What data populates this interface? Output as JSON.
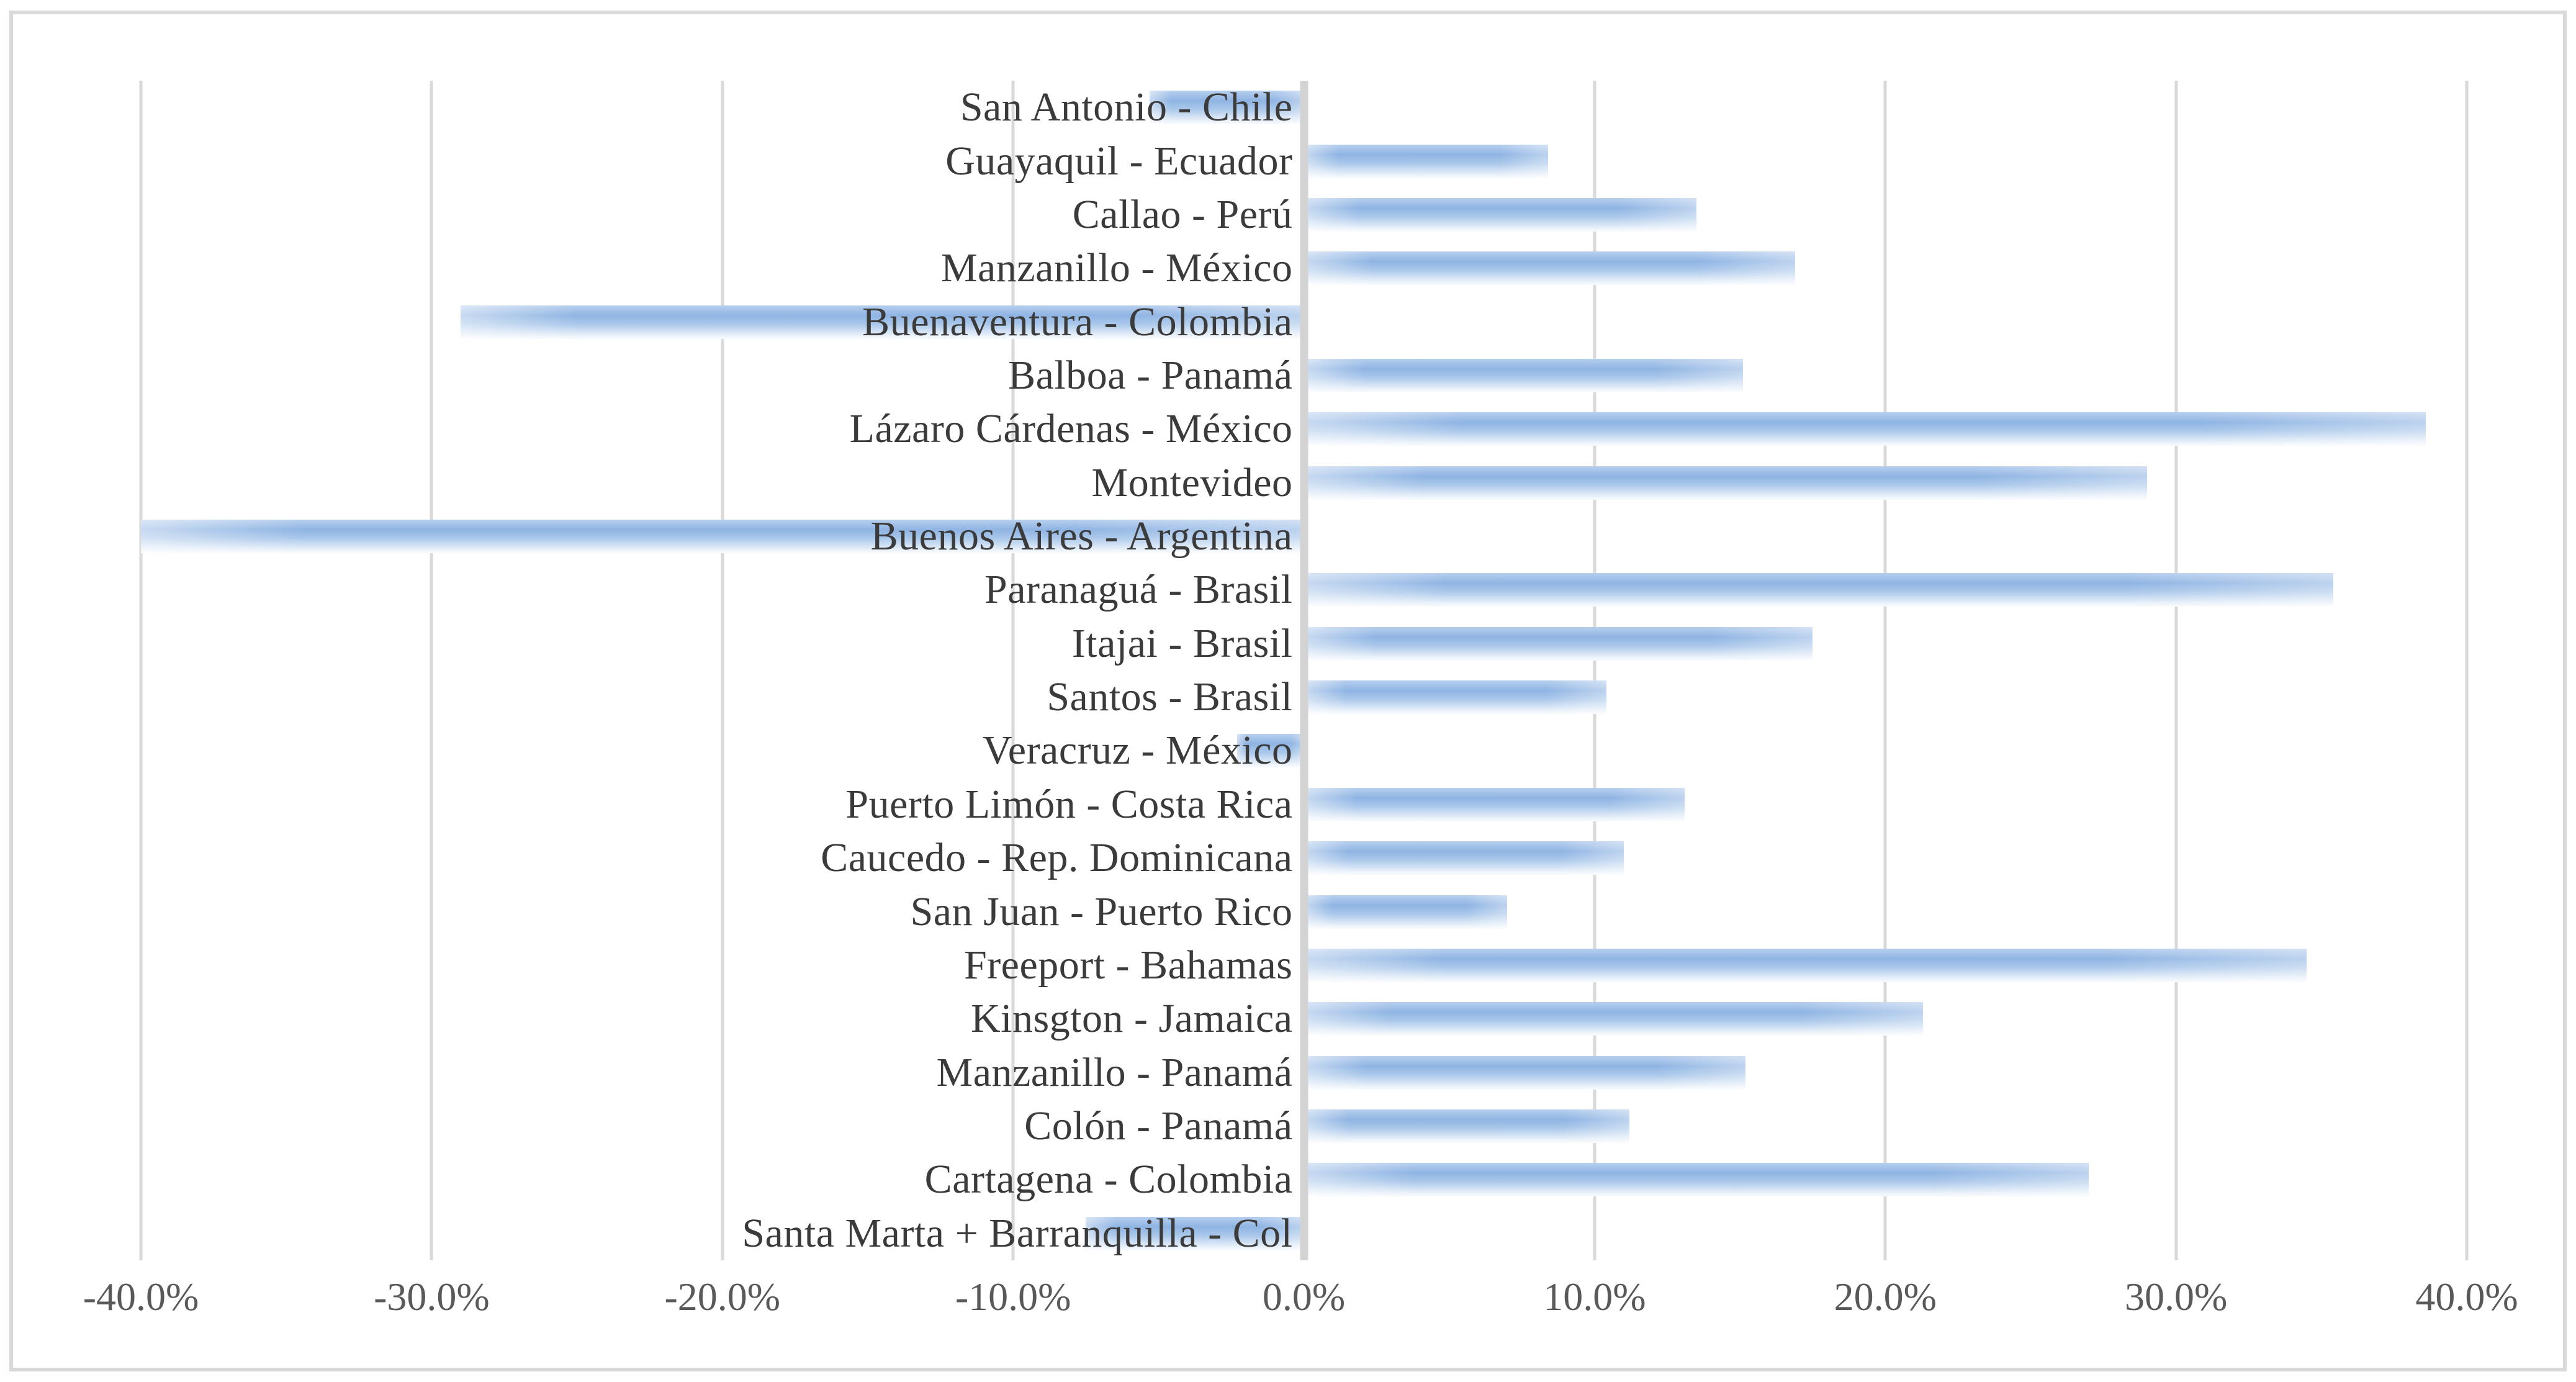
{
  "chart_data": {
    "type": "bar",
    "orientation": "horizontal",
    "title": "",
    "xlabel": "",
    "ylabel": "",
    "unit": "percent",
    "xlim": [
      -40,
      40
    ],
    "x_ticks": [
      -40,
      -30,
      -20,
      -10,
      0,
      10,
      20,
      30,
      40
    ],
    "x_tick_labels": [
      "-40.0%",
      "-30.0%",
      "-20.0%",
      "-10.0%",
      "0.0%",
      "10.0%",
      "20.0%",
      "30.0%",
      "40.0%"
    ],
    "grid": "vertical-gridlines-on",
    "legend": "none",
    "categories": [
      "San Antonio - Chile",
      "Guayaquil - Ecuador",
      "Callao - Perú",
      "Manzanillo - México",
      "Buenaventura - Colombia",
      "Balboa - Panamá",
      "Lázaro Cárdenas - México",
      "Montevideo",
      "Buenos Aires - Argentina",
      "Paranaguá - Brasil",
      "Itajai - Brasil",
      "Santos - Brasil",
      "Veracruz - México",
      "Puerto Limón - Costa Rica",
      "Caucedo - Rep. Dominicana",
      "San Juan - Puerto Rico",
      "Freeport - Bahamas",
      "Kinsgton - Jamaica",
      "Manzanillo - Panamá",
      "Colón - Panamá",
      "Cartagena - Colombia",
      "Santa Marta + Barranquilla - Col"
    ],
    "values": [
      -5.3,
      8.4,
      13.5,
      16.9,
      -29.0,
      15.1,
      38.6,
      29.0,
      -40.0,
      35.4,
      17.5,
      10.4,
      -2.3,
      13.1,
      11.0,
      7.0,
      34.5,
      21.3,
      15.2,
      11.2,
      27.0,
      -7.5
    ],
    "colors": {
      "bar_main": "#8fb4e3",
      "bar_light": "#eef4fb",
      "gridline": "#d9d9d9",
      "zero_axis_line": "#d3d3d3",
      "tick_label": "#595959",
      "category_label": "#3b3b3b",
      "frame_border": "#d9d9d9",
      "background": "#ffffff"
    }
  }
}
